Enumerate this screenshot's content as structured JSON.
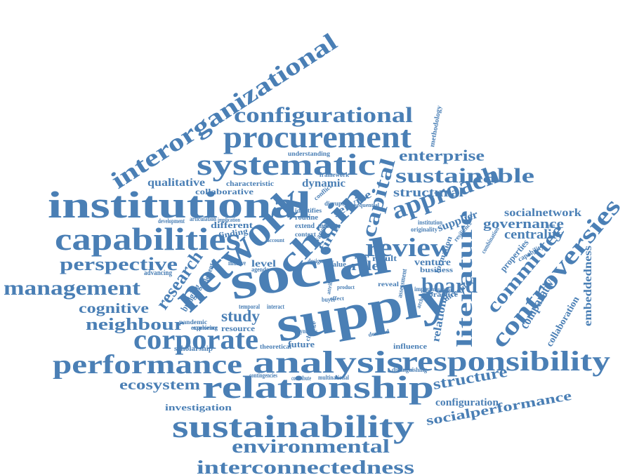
{
  "colors": {
    "word": "#4a7fb5",
    "background": "#ffffff"
  },
  "words": [
    "social",
    "supply",
    "network",
    "chain",
    "institutional",
    "capabilities",
    "relationship",
    "sustainability",
    "analysis",
    "responsibility",
    "performance",
    "corporate",
    "procurement",
    "systematic",
    "configurational",
    "interorganizational",
    "management",
    "controversies",
    "literature",
    "review",
    "approach",
    "capital",
    "board",
    "sustainable",
    "perspective",
    "neighbour",
    "research",
    "environmental",
    "interconnectedness",
    "ecosystem",
    "cognitive",
    "study",
    "committee",
    "structure",
    "configuration",
    "socialperformance",
    "enterprise",
    "governance",
    "socialnetwork",
    "centrality",
    "comparative",
    "collaboration",
    "embeddedness",
    "relational",
    "supplier",
    "structural",
    "dynamic",
    "qualitative",
    "characteristic",
    "collaborative",
    "framework",
    "different",
    "finding",
    "level",
    "firm",
    "role",
    "service",
    "methodology",
    "understanding",
    "venture",
    "business",
    "practice",
    "director",
    "impact",
    "formation",
    "properties",
    "capability",
    "investigation",
    "scholarship",
    "theoretical",
    "future",
    "influence",
    "resource",
    "experience",
    "pandemic",
    "bridging",
    "advancing",
    "result",
    "paper",
    "value",
    "design",
    "case",
    "buyer",
    "demand",
    "assessment",
    "archetype",
    "contingencies",
    "contribute",
    "multinational",
    "distinguishing",
    "element",
    "initiative",
    "agenda",
    "routine",
    "identifies",
    "extend",
    "manage",
    "various",
    "disruption",
    "conflict",
    "originality",
    "resilience",
    "temporal",
    "interact",
    "exploring",
    "synthesis",
    "change",
    "combination",
    "governance",
    "context",
    "development",
    "articulation",
    "implication",
    "managerial",
    "institution",
    "reveal",
    "product",
    "attribute",
    "sequential",
    "effect",
    "account"
  ]
}
